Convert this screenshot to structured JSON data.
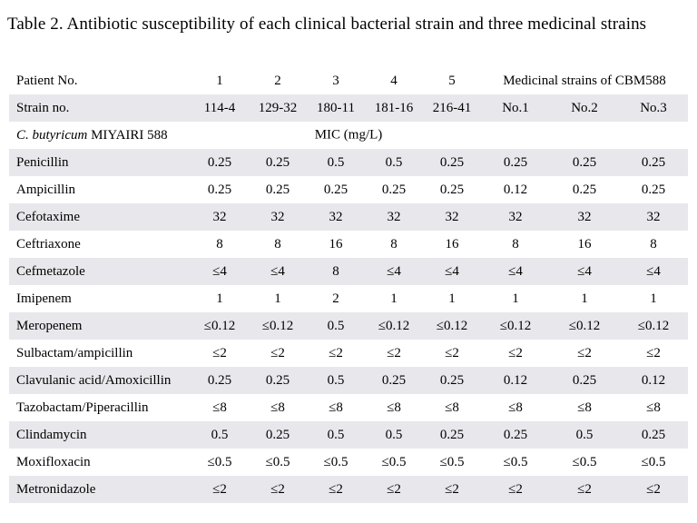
{
  "title": "Table 2. Antibiotic susceptibility of each clinical bacterial strain and three medicinal strains",
  "table": {
    "header_row1": {
      "label": "Patient No.",
      "values": [
        "1",
        "2",
        "3",
        "4",
        "5"
      ],
      "group_label": "Medicinal strains of CBM588"
    },
    "header_row2": {
      "label": "Strain no.",
      "values": [
        "114-4",
        "129-32",
        "180-11",
        "181-16",
        "216-41",
        "No.1",
        "No.2",
        "No.3"
      ]
    },
    "subheader": {
      "species_italic": "C. butyricum",
      "species_rest": " MIYAIRI 588",
      "unit_label": "MIC (mg/L)"
    },
    "rows": [
      {
        "name": "Penicillin",
        "values": [
          "0.25",
          "0.25",
          "0.5",
          "0.5",
          "0.25",
          "0.25",
          "0.25",
          "0.25"
        ]
      },
      {
        "name": "Ampicillin",
        "values": [
          "0.25",
          "0.25",
          "0.25",
          "0.25",
          "0.25",
          "0.12",
          "0.25",
          "0.25"
        ]
      },
      {
        "name": "Cefotaxime",
        "values": [
          "32",
          "32",
          "32",
          "32",
          "32",
          "32",
          "32",
          "32"
        ]
      },
      {
        "name": "Ceftriaxone",
        "values": [
          "8",
          "8",
          "16",
          "8",
          "16",
          "8",
          "16",
          "8"
        ]
      },
      {
        "name": "Cefmetazole",
        "values": [
          "≤4",
          "≤4",
          "8",
          "≤4",
          "≤4",
          "≤4",
          "≤4",
          "≤4"
        ]
      },
      {
        "name": "Imipenem",
        "values": [
          "1",
          "1",
          "2",
          "1",
          "1",
          "1",
          "1",
          "1"
        ]
      },
      {
        "name": "Meropenem",
        "values": [
          "≤0.12",
          "≤0.12",
          "0.5",
          "≤0.12",
          "≤0.12",
          "≤0.12",
          "≤0.12",
          "≤0.12"
        ]
      },
      {
        "name": "Sulbactam/ampicillin",
        "values": [
          "≤2",
          "≤2",
          "≤2",
          "≤2",
          "≤2",
          "≤2",
          "≤2",
          "≤2"
        ]
      },
      {
        "name": "Clavulanic acid/Amoxicillin",
        "values": [
          "0.25",
          "0.25",
          "0.5",
          "0.25",
          "0.25",
          "0.12",
          "0.25",
          "0.12"
        ]
      },
      {
        "name": "Tazobactam/Piperacillin",
        "values": [
          "≤8",
          "≤8",
          "≤8",
          "≤8",
          "≤8",
          "≤8",
          "≤8",
          "≤8"
        ]
      },
      {
        "name": "Clindamycin",
        "values": [
          "0.5",
          "0.25",
          "0.5",
          "0.5",
          "0.25",
          "0.25",
          "0.5",
          "0.25"
        ]
      },
      {
        "name": "Moxifloxacin",
        "values": [
          "≤0.5",
          "≤0.5",
          "≤0.5",
          "≤0.5",
          "≤0.5",
          "≤0.5",
          "≤0.5",
          "≤0.5"
        ]
      },
      {
        "name": "Metronidazole",
        "values": [
          "≤2",
          "≤2",
          "≤2",
          "≤2",
          "≤2",
          "≤2",
          "≤2",
          "≤2"
        ]
      }
    ],
    "colors": {
      "row_shade": "#e8e8ec",
      "background": "#ffffff",
      "text": "#000000"
    }
  }
}
